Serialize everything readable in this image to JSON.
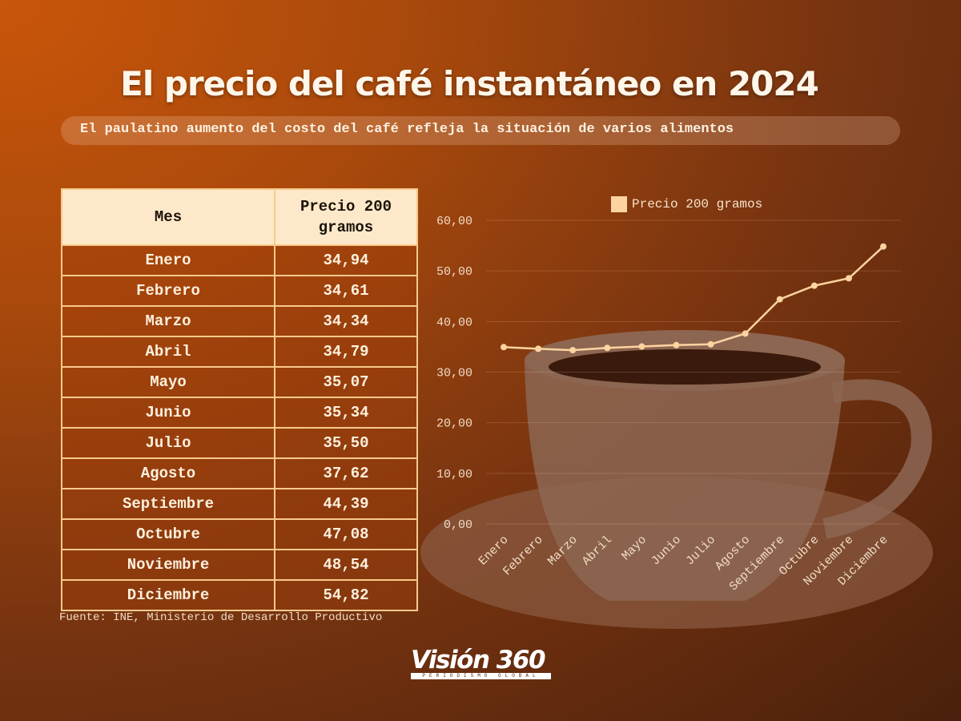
{
  "title": "El precio del café instantáneo en 2024",
  "subtitle": "El paulatino aumento del costo del café refleja la situación de varios alimentos",
  "table": {
    "headers": [
      "Mes",
      "Precio 200 gramos"
    ],
    "rows": [
      [
        "Enero",
        "34,94"
      ],
      [
        "Febrero",
        "34,61"
      ],
      [
        "Marzo",
        "34,34"
      ],
      [
        "Abril",
        "34,79"
      ],
      [
        "Mayo",
        "35,07"
      ],
      [
        "Junio",
        "35,34"
      ],
      [
        "Julio",
        "35,50"
      ],
      [
        "Agosto",
        "37,62"
      ],
      [
        "Septiembre",
        "44,39"
      ],
      [
        "Octubre",
        "47,08"
      ],
      [
        "Noviembre",
        "48,54"
      ],
      [
        "Diciembre",
        "54,82"
      ]
    ]
  },
  "source": "Fuente: INE,  Ministerio de Desarrollo Productivo",
  "logo": {
    "name": "Visión 360",
    "tagline": "PERIODISMO GLOBAL"
  },
  "chart_data": {
    "type": "line",
    "categories": [
      "Enero",
      "Febrero",
      "Marzo",
      "Abril",
      "Mayo",
      "Junio",
      "Julio",
      "Agosto",
      "Septiembre",
      "Octubre",
      "Noviembre",
      "Diciembre"
    ],
    "series": [
      {
        "name": "Precio 200 gramos",
        "values": [
          34.94,
          34.61,
          34.34,
          34.79,
          35.07,
          35.34,
          35.5,
          37.62,
          44.39,
          47.08,
          48.54,
          54.82
        ],
        "color": "#fdd4a0"
      }
    ],
    "yticks": [
      "0,00",
      "10,00",
      "20,00",
      "30,00",
      "40,00",
      "50,00",
      "60,00"
    ],
    "ylim": [
      0,
      60
    ],
    "grid": true,
    "legend": "top-center"
  }
}
